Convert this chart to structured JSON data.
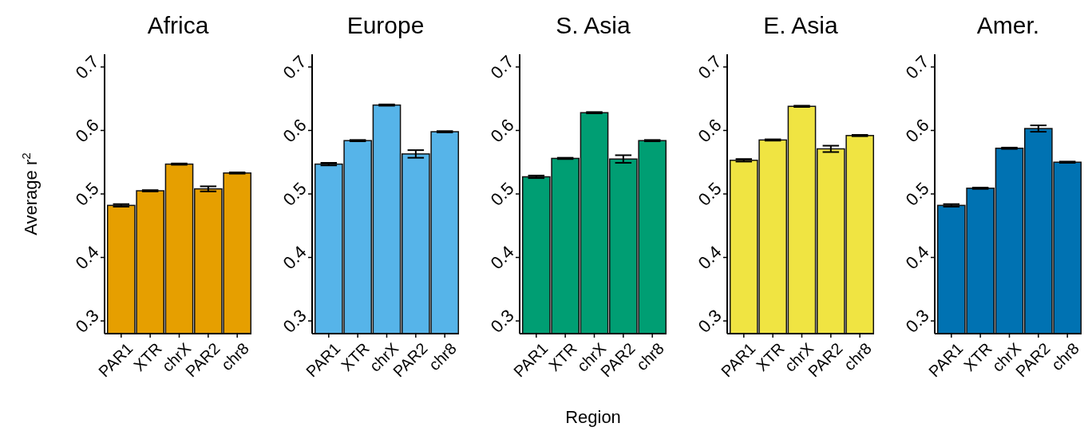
{
  "chart_data": [
    {
      "type": "bar",
      "title": "Africa",
      "ylabel": "Average r$^{2}$",
      "categories": [
        "PAR1",
        "XTR",
        "chrX",
        "PAR2",
        "chr8"
      ],
      "values": [
        0.482,
        0.505,
        0.547,
        0.508,
        0.533
      ],
      "errors": [
        0.002,
        0.001,
        0.001,
        0.004,
        0.001
      ],
      "color": "#e69f00",
      "ylim": [
        0.28,
        0.72
      ],
      "yticks": [
        0.3,
        0.4,
        0.5,
        0.6,
        0.7
      ],
      "grid": false
    },
    {
      "type": "bar",
      "title": "Europe",
      "categories": [
        "PAR1",
        "XTR",
        "chrX",
        "PAR2",
        "chr8"
      ],
      "values": [
        0.547,
        0.584,
        0.64,
        0.563,
        0.598
      ],
      "errors": [
        0.002,
        0.001,
        0.001,
        0.006,
        0.001
      ],
      "color": "#56b4e9",
      "ylim": [
        0.28,
        0.72
      ],
      "yticks": [
        0.3,
        0.4,
        0.5,
        0.6,
        0.7
      ],
      "grid": false
    },
    {
      "type": "bar",
      "title": "S. Asia",
      "xlabel": "Region",
      "categories": [
        "PAR1",
        "XTR",
        "chrX",
        "PAR2",
        "chr8"
      ],
      "values": [
        0.527,
        0.556,
        0.628,
        0.555,
        0.584
      ],
      "errors": [
        0.002,
        0.001,
        0.001,
        0.006,
        0.001
      ],
      "color": "#009e73",
      "ylim": [
        0.28,
        0.72
      ],
      "yticks": [
        0.3,
        0.4,
        0.5,
        0.6,
        0.7
      ],
      "grid": false
    },
    {
      "type": "bar",
      "title": "E. Asia",
      "categories": [
        "PAR1",
        "XTR",
        "chrX",
        "PAR2",
        "chr8"
      ],
      "values": [
        0.553,
        0.585,
        0.638,
        0.571,
        0.592
      ],
      "errors": [
        0.002,
        0.001,
        0.001,
        0.005,
        0.001
      ],
      "color": "#f0e442",
      "ylim": [
        0.28,
        0.72
      ],
      "yticks": [
        0.3,
        0.4,
        0.5,
        0.6,
        0.7
      ],
      "grid": false
    },
    {
      "type": "bar",
      "title": "Amer.",
      "categories": [
        "PAR1",
        "XTR",
        "chrX",
        "PAR2",
        "chr8"
      ],
      "values": [
        0.482,
        0.509,
        0.572,
        0.603,
        0.55
      ],
      "errors": [
        0.002,
        0.001,
        0.001,
        0.005,
        0.001
      ],
      "color": "#0072b2",
      "ylim": [
        0.28,
        0.72
      ],
      "yticks": [
        0.3,
        0.4,
        0.5,
        0.6,
        0.7
      ],
      "grid": false
    }
  ]
}
